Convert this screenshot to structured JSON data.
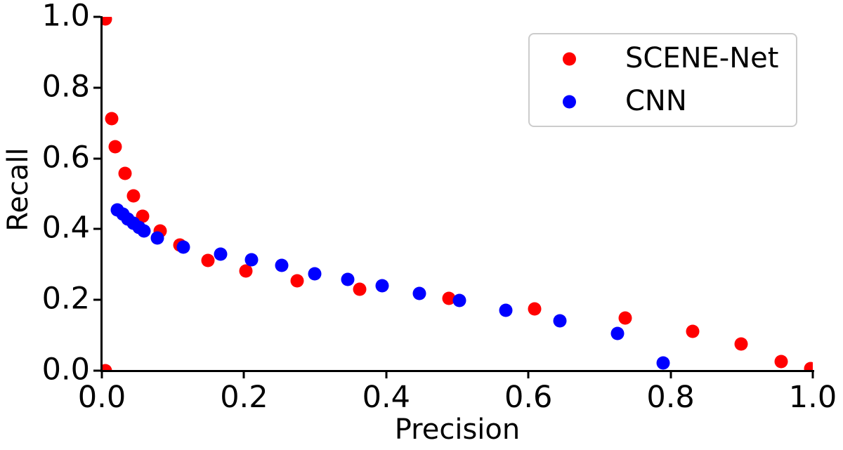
{
  "figure": {
    "background": "#ffffff",
    "text_color": "#000000",
    "spine_color": "#000000",
    "legend_border_color": "#cccccc"
  },
  "chart_data": {
    "type": "scatter",
    "title": "",
    "xlabel": "Precision",
    "ylabel": "Recall",
    "xlim": [
      0.0,
      1.0
    ],
    "ylim": [
      0.0,
      1.0
    ],
    "grid": false,
    "legend_position": "upper right",
    "x_ticks": [
      0.0,
      0.2,
      0.4,
      0.6,
      0.8,
      1.0
    ],
    "x_tick_labels": [
      "0.0",
      "0.2",
      "0.4",
      "0.6",
      "0.8",
      "1.0"
    ],
    "y_ticks": [
      0.0,
      0.2,
      0.4,
      0.6,
      0.8,
      1.0
    ],
    "y_tick_labels": [
      "0.0",
      "0.2",
      "0.4",
      "0.6",
      "0.8",
      "1.0"
    ],
    "series": [
      {
        "name": "SCENE-Net",
        "color": "#ff0000",
        "marker": "circle",
        "points": [
          [
            0.005,
            0.995
          ],
          [
            0.014,
            0.712
          ],
          [
            0.019,
            0.633
          ],
          [
            0.033,
            0.558
          ],
          [
            0.044,
            0.494
          ],
          [
            0.057,
            0.437
          ],
          [
            0.082,
            0.395
          ],
          [
            0.11,
            0.355
          ],
          [
            0.149,
            0.312
          ],
          [
            0.203,
            0.282
          ],
          [
            0.275,
            0.254
          ],
          [
            0.363,
            0.23
          ],
          [
            0.488,
            0.204
          ],
          [
            0.609,
            0.175
          ],
          [
            0.736,
            0.149
          ],
          [
            0.831,
            0.111
          ],
          [
            0.899,
            0.075
          ],
          [
            0.956,
            0.026
          ],
          [
            0.997,
            0.006
          ],
          [
            0.005,
            0.0
          ]
        ]
      },
      {
        "name": "CNN",
        "color": "#0000ff",
        "marker": "circle",
        "points": [
          [
            0.022,
            0.454
          ],
          [
            0.03,
            0.442
          ],
          [
            0.037,
            0.429
          ],
          [
            0.044,
            0.416
          ],
          [
            0.052,
            0.404
          ],
          [
            0.059,
            0.394
          ],
          [
            0.078,
            0.375
          ],
          [
            0.115,
            0.349
          ],
          [
            0.167,
            0.329
          ],
          [
            0.21,
            0.313
          ],
          [
            0.253,
            0.298
          ],
          [
            0.299,
            0.274
          ],
          [
            0.346,
            0.258
          ],
          [
            0.394,
            0.24
          ],
          [
            0.447,
            0.218
          ],
          [
            0.503,
            0.198
          ],
          [
            0.568,
            0.171
          ],
          [
            0.644,
            0.141
          ],
          [
            0.725,
            0.105
          ],
          [
            0.79,
            0.022
          ]
        ]
      }
    ]
  }
}
